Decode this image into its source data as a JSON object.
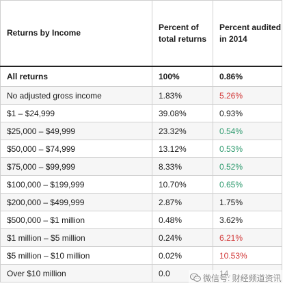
{
  "table": {
    "headers": {
      "col1": "Returns by Income",
      "col2": "Percent of total returns",
      "col3": "Percent audited in 2014"
    },
    "rows": [
      {
        "income": "All returns",
        "percent_total": "100%",
        "percent_audited": "0.86%",
        "color": "#1a1a1a"
      },
      {
        "income": "No adjusted gross income",
        "percent_total": "1.83%",
        "percent_audited": "5.26%",
        "color": "#d23a3a"
      },
      {
        "income": "$1 – $24,999",
        "percent_total": "39.08%",
        "percent_audited": "0.93%",
        "color": "#1a1a1a"
      },
      {
        "income": "$25,000 – $49,999",
        "percent_total": "23.32%",
        "percent_audited": "0.54%",
        "color": "#2e9a6e"
      },
      {
        "income": "$50,000 – $74,999",
        "percent_total": "13.12%",
        "percent_audited": "0.53%",
        "color": "#2e9a6e"
      },
      {
        "income": "$75,000 – $99,999",
        "percent_total": "8.33%",
        "percent_audited": "0.52%",
        "color": "#2e9a6e"
      },
      {
        "income": "$100,000 – $199,999",
        "percent_total": "10.70%",
        "percent_audited": "0.65%",
        "color": "#2e9a6e"
      },
      {
        "income": "$200,000 – $499,999",
        "percent_total": "2.87%",
        "percent_audited": "1.75%",
        "color": "#1a1a1a"
      },
      {
        "income": "$500,000 – $1 million",
        "percent_total": "0.48%",
        "percent_audited": "3.62%",
        "color": "#1a1a1a"
      },
      {
        "income": "$1 million – $5 million",
        "percent_total": "0.24%",
        "percent_audited": "6.21%",
        "color": "#d23a3a"
      },
      {
        "income": "$5 million – $10 million",
        "percent_total": "0.02%",
        "percent_audited": "10.53%",
        "color": "#d23a3a"
      },
      {
        "income": "Over $10 million",
        "percent_total": "0.0",
        "percent_audited": "14.",
        "color": "#1a1a1a"
      }
    ]
  },
  "watermark": {
    "text": "微信号: 财经频道资讯",
    "icon": "wechat-icon"
  }
}
